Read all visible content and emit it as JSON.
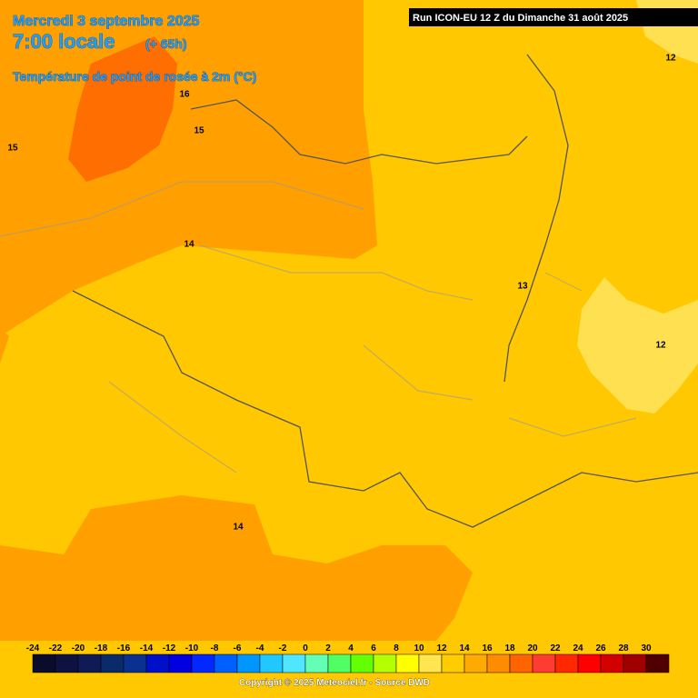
{
  "header": {
    "date": "Mercredi 3 septembre 2025",
    "time": "7:00 locale",
    "lead": "(+ 65h)",
    "parameter": "Température de point de rosée à 2m (°C)",
    "run": "Run ICON-EU 12 Z du Dimanche 31 août 2025"
  },
  "map": {
    "contour_labels": [
      "16",
      "15",
      "15",
      "14",
      "14",
      "13",
      "12",
      "12"
    ]
  },
  "legend": {
    "steps": [
      {
        "label": "-24",
        "color": "#0b0b2b"
      },
      {
        "label": "-22",
        "color": "#0f1240"
      },
      {
        "label": "-20",
        "color": "#101a55"
      },
      {
        "label": "-18",
        "color": "#0a2a6a"
      },
      {
        "label": "-16",
        "color": "#0a3090"
      },
      {
        "label": "-14",
        "color": "#0010c8"
      },
      {
        "label": "-12",
        "color": "#0000e0"
      },
      {
        "label": "-10",
        "color": "#0028ff"
      },
      {
        "label": "-8",
        "color": "#0060ff"
      },
      {
        "label": "-6",
        "color": "#0096ff"
      },
      {
        "label": "-4",
        "color": "#20c8ff"
      },
      {
        "label": "-2",
        "color": "#50e6ff"
      },
      {
        "label": "0",
        "color": "#64ffb4"
      },
      {
        "label": "2",
        "color": "#50ff64"
      },
      {
        "label": "4",
        "color": "#64ff00"
      },
      {
        "label": "6",
        "color": "#b4ff00"
      },
      {
        "label": "8",
        "color": "#ffff00"
      },
      {
        "label": "10",
        "color": "#ffe650"
      },
      {
        "label": "12",
        "color": "#ffcc00"
      },
      {
        "label": "14",
        "color": "#ffaa00"
      },
      {
        "label": "16",
        "color": "#ff8c00"
      },
      {
        "label": "18",
        "color": "#ff6400"
      },
      {
        "label": "20",
        "color": "#ff3c32"
      },
      {
        "label": "22",
        "color": "#ff2800"
      },
      {
        "label": "24",
        "color": "#ff0000"
      },
      {
        "label": "26",
        "color": "#d20000"
      },
      {
        "label": "28",
        "color": "#a00000"
      },
      {
        "label": "30",
        "color": "#500000"
      }
    ]
  },
  "footer": {
    "copyright": "Copyright © 2025 Meteociel.fr - Source DWD"
  }
}
